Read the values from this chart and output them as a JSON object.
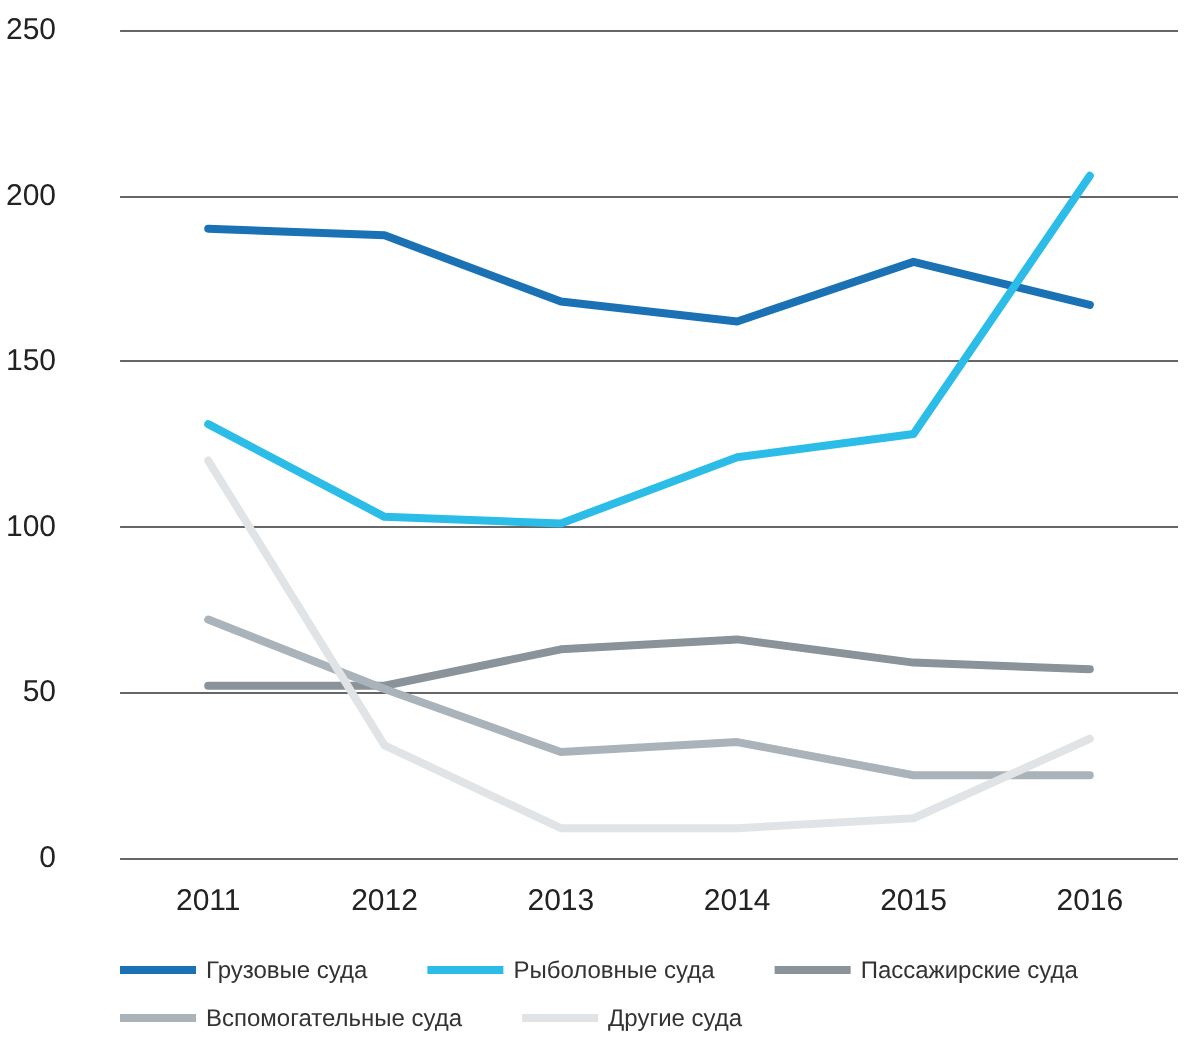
{
  "chart_data": {
    "type": "line",
    "categories": [
      "2011",
      "2012",
      "2013",
      "2014",
      "2015",
      "2016"
    ],
    "series": [
      {
        "name": "Грузовые суда",
        "color": "#1a72b5",
        "values": [
          190,
          188,
          168,
          162,
          180,
          167
        ]
      },
      {
        "name": "Рыболовные суда",
        "color": "#2bbde8",
        "values": [
          131,
          103,
          101,
          121,
          128,
          206
        ]
      },
      {
        "name": "Пассажирские суда",
        "color": "#8a9399",
        "values": [
          52,
          52,
          63,
          66,
          59,
          57
        ]
      },
      {
        "name": "Вспомогательные суда",
        "color": "#aab3ba",
        "values": [
          72,
          51,
          32,
          35,
          25,
          25
        ]
      },
      {
        "name": "Другие суда",
        "color": "#e1e4e6",
        "values": [
          120,
          34,
          9,
          9,
          12,
          36
        ]
      }
    ],
    "ylim": [
      0,
      250
    ],
    "yticks": [
      0,
      50,
      100,
      150,
      200,
      250
    ],
    "grid": "y",
    "legend": "bottom",
    "marker": "none",
    "line_style": "solid"
  }
}
